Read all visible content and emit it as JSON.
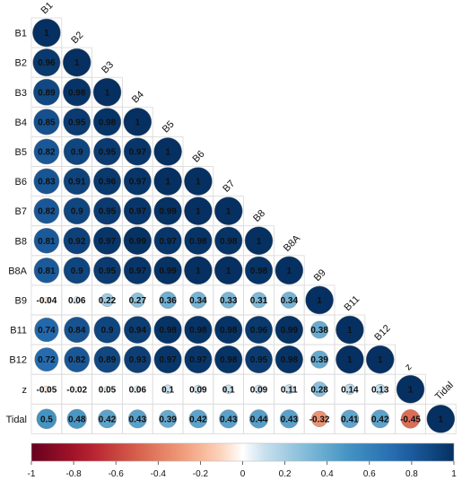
{
  "chart_data": {
    "type": "heatmap",
    "variables": [
      "B1",
      "B2",
      "B3",
      "B4",
      "B5",
      "B6",
      "B7",
      "B8",
      "B8A",
      "B9",
      "B11",
      "B12",
      "z",
      "Tidal"
    ],
    "matrix_lower": [
      [
        1
      ],
      [
        0.96,
        1
      ],
      [
        0.89,
        0.98,
        1
      ],
      [
        0.85,
        0.95,
        0.98,
        1
      ],
      [
        0.82,
        0.9,
        0.95,
        0.97,
        1
      ],
      [
        0.83,
        0.91,
        0.96,
        0.97,
        1,
        1
      ],
      [
        0.82,
        0.9,
        0.95,
        0.97,
        0.99,
        1,
        1
      ],
      [
        0.81,
        0.92,
        0.97,
        0.99,
        0.97,
        0.98,
        0.98,
        1
      ],
      [
        0.81,
        0.9,
        0.95,
        0.97,
        0.99,
        1,
        1,
        0.98,
        1
      ],
      [
        -0.04,
        0.06,
        0.22,
        0.27,
        0.36,
        0.34,
        0.33,
        0.31,
        0.34,
        1
      ],
      [
        0.74,
        0.84,
        0.9,
        0.94,
        0.98,
        0.98,
        0.98,
        0.96,
        0.99,
        0.38,
        1
      ],
      [
        0.72,
        0.82,
        0.89,
        0.93,
        0.97,
        0.97,
        0.98,
        0.95,
        0.98,
        0.39,
        1,
        1
      ],
      [
        -0.05,
        -0.02,
        0.05,
        0.06,
        0.1,
        0.09,
        0.1,
        0.09,
        0.11,
        0.28,
        0.14,
        0.13,
        1
      ],
      [
        0.5,
        0.48,
        0.42,
        0.43,
        0.39,
        0.42,
        0.43,
        0.44,
        0.43,
        -0.32,
        0.41,
        0.42,
        -0.45,
        1
      ]
    ],
    "colorbar": {
      "ticks": [
        "-1",
        "-0.8",
        "-0.6",
        "-0.4",
        "-0.2",
        "0",
        "0.2",
        "0.4",
        "0.6",
        "0.8",
        "1"
      ],
      "range": [
        -1,
        1
      ]
    },
    "colors": {
      "negative_end": "#67001f",
      "zero": "#ffffff",
      "positive_end": "#053061"
    }
  }
}
